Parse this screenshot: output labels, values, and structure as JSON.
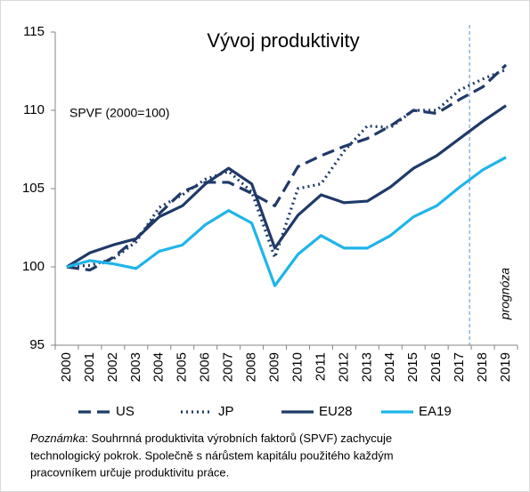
{
  "chart_data": {
    "type": "line",
    "title": "Vývoj produktivity",
    "annotations": [
      "SPVF (2000=100)",
      "prognóza"
    ],
    "forecast_start": "2018",
    "categories": [
      "2000",
      "2001",
      "2002",
      "2003",
      "2004",
      "2005",
      "2006",
      "2007",
      "2008",
      "2009",
      "2010",
      "2011",
      "2012",
      "2013",
      "2014",
      "2015",
      "2016",
      "2017",
      "2018",
      "2019"
    ],
    "series": [
      {
        "name": "US",
        "color": "#1f3a68",
        "dash": "dashed",
        "values": [
          100,
          99.8,
          100.6,
          101.8,
          103.4,
          104.8,
          105.4,
          105.4,
          104.7,
          103.9,
          106.4,
          107.1,
          107.7,
          108.2,
          109.0,
          110.0,
          109.8,
          110.7,
          111.5,
          112.9
        ]
      },
      {
        "name": "JP",
        "color": "#1f3a68",
        "dash": "dotted",
        "values": [
          100,
          100.1,
          100.5,
          101.6,
          103.8,
          104.6,
          105.6,
          106.1,
          104.8,
          100.6,
          105.0,
          105.3,
          107.4,
          109.0,
          108.9,
          110.0,
          110.0,
          111.3,
          112.0,
          112.6
        ]
      },
      {
        "name": "EU28",
        "color": "#1f3a68",
        "dash": "solid",
        "values": [
          100,
          100.9,
          101.4,
          101.8,
          103.2,
          103.9,
          105.3,
          106.3,
          105.3,
          101.2,
          103.3,
          104.6,
          104.1,
          104.2,
          105.1,
          106.3,
          107.1,
          108.2,
          109.3,
          110.3
        ]
      },
      {
        "name": "EA19",
        "color": "#1fb4ea",
        "dash": "solid",
        "values": [
          100,
          100.4,
          100.2,
          99.9,
          101.0,
          101.4,
          102.7,
          103.6,
          102.8,
          98.8,
          100.8,
          102.0,
          101.2,
          101.2,
          102.0,
          103.2,
          103.9,
          105.1,
          106.2,
          107.0
        ]
      }
    ],
    "ylim": [
      95,
      115
    ],
    "yticks": [
      95,
      100,
      105,
      110,
      115
    ],
    "grid": false,
    "legend": "bottom",
    "note": {
      "label": "Poznámka",
      "lines": [
        ": Souhrnná produktivita výrobních faktorů (SPVF) zachycuje",
        "technologický pokrok. Společně s nárůstem kapitálu použitého každým",
        "pracovníkem určuje produktivitu práce."
      ]
    }
  }
}
